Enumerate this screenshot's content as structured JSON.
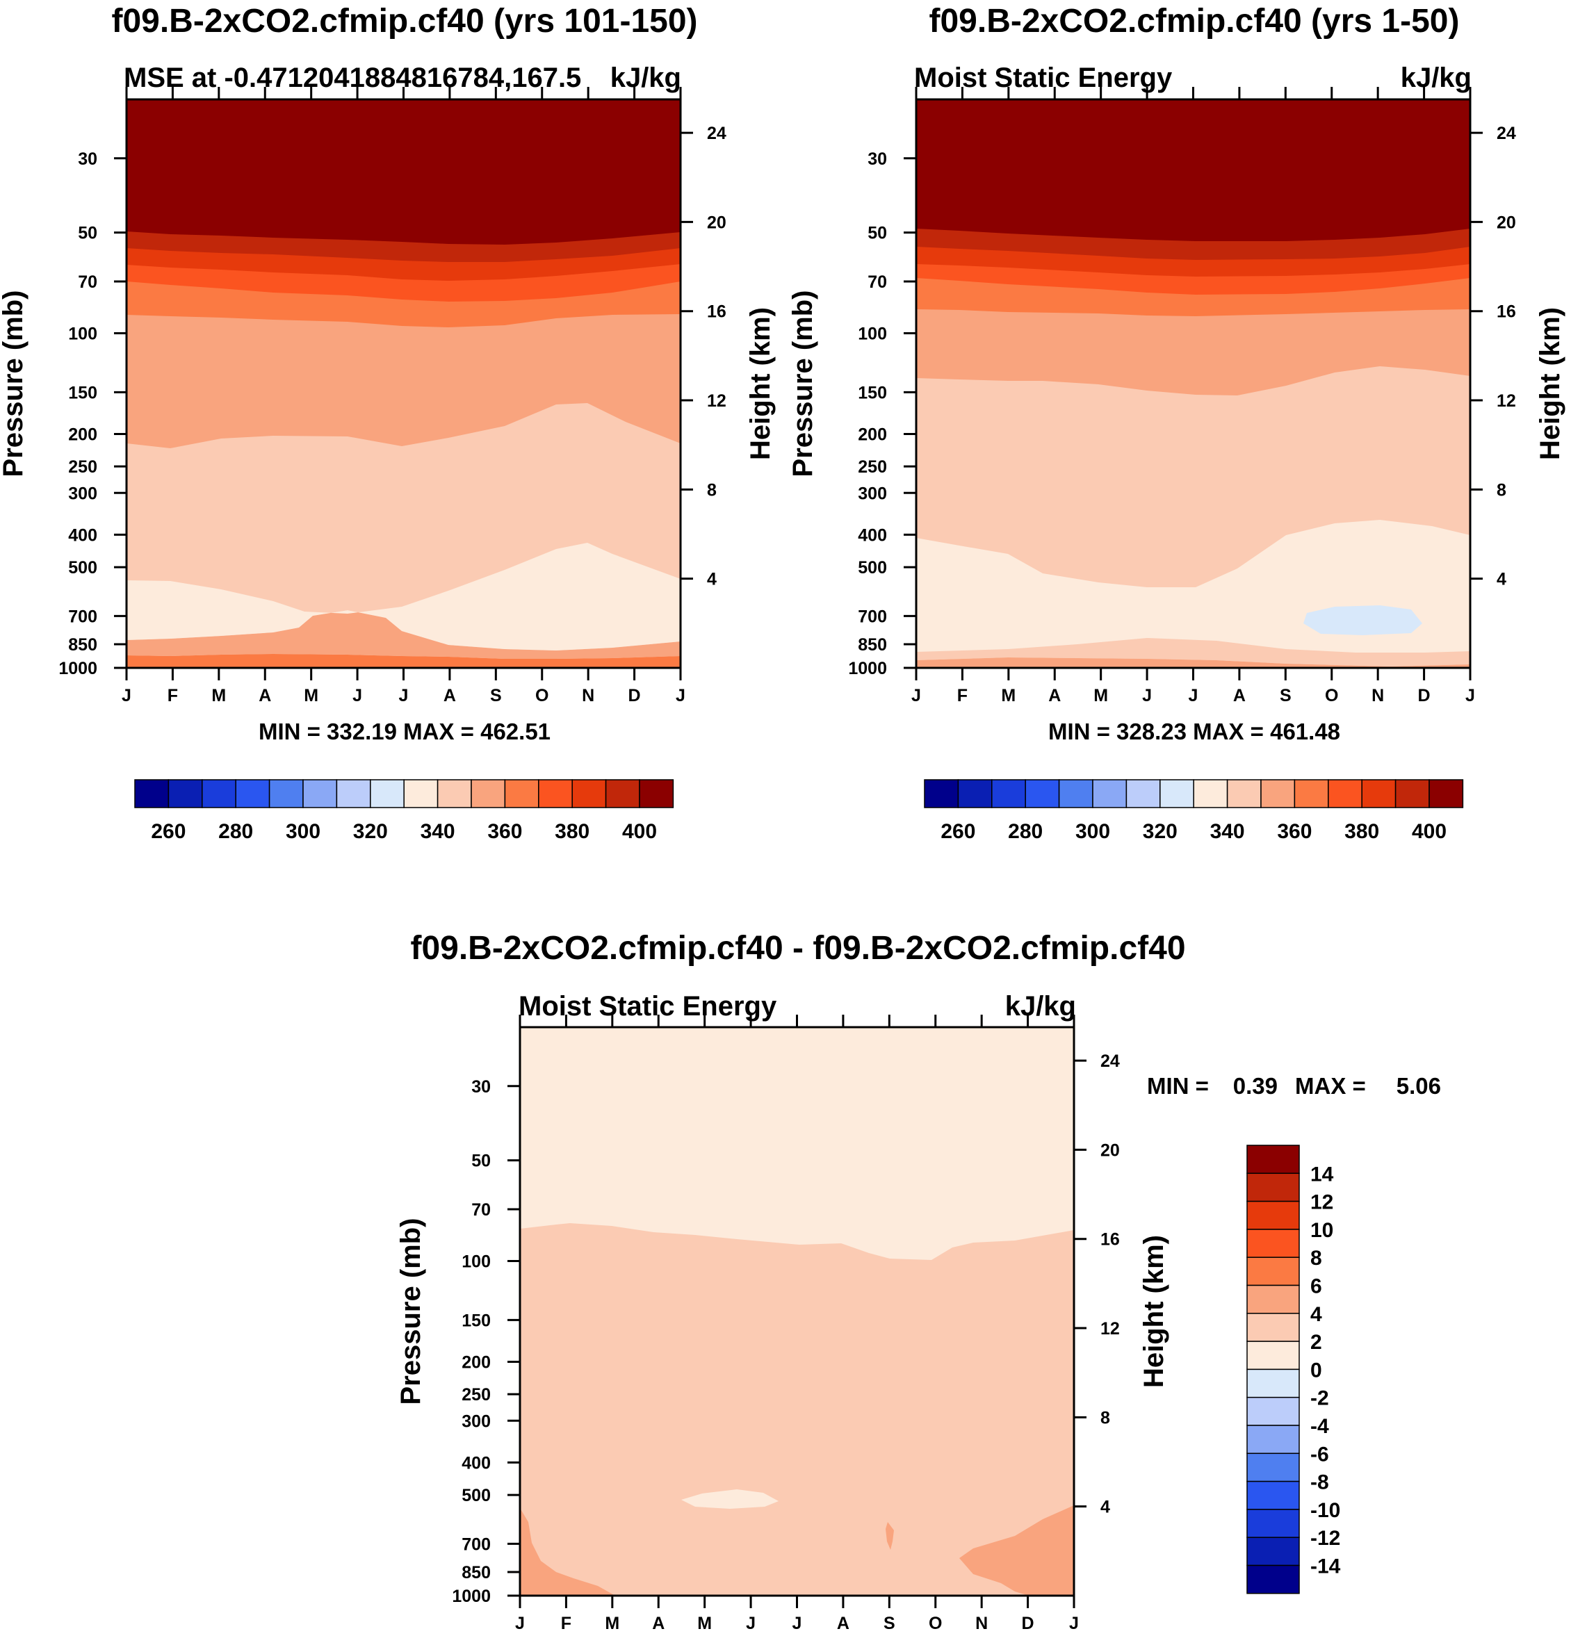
{
  "chart_data": [
    {
      "type": "contour",
      "title": "f09.B-2xCO2.cfmip.cf40 (yrs 101-150)",
      "subtitle_left": "MSE at -0.4712041884816784,167.5",
      "subtitle_right": "kJ/kg",
      "ylabel": "Pressure (mb)",
      "ylabel_right": "Height (km)",
      "x_ticks": [
        "J",
        "F",
        "M",
        "A",
        "M",
        "J",
        "J",
        "A",
        "S",
        "O",
        "N",
        "D",
        "J"
      ],
      "y_ticks": [
        "30",
        "50",
        "70",
        "100",
        "150",
        "200",
        "250",
        "300",
        "400",
        "500",
        "700",
        "850",
        "1000"
      ],
      "y_ticks_right": [
        "24",
        "20",
        "16",
        "12",
        "8",
        "4"
      ],
      "min_max_text": "MIN = 332.19 MAX = 462.51",
      "colorbar_labels": [
        "260",
        "280",
        "300",
        "320",
        "340",
        "360",
        "380",
        "400"
      ]
    },
    {
      "type": "contour",
      "title": "f09.B-2xCO2.cfmip.cf40 (yrs 1-50)",
      "subtitle_left": "Moist Static Energy",
      "subtitle_right": "kJ/kg",
      "ylabel": "Pressure (mb)",
      "ylabel_right": "Height (km)",
      "x_ticks": [
        "J",
        "F",
        "M",
        "A",
        "M",
        "J",
        "J",
        "A",
        "S",
        "O",
        "N",
        "D",
        "J"
      ],
      "y_ticks": [
        "30",
        "50",
        "70",
        "100",
        "150",
        "200",
        "250",
        "300",
        "400",
        "500",
        "700",
        "850",
        "1000"
      ],
      "y_ticks_right": [
        "24",
        "20",
        "16",
        "12",
        "8",
        "4"
      ],
      "min_max_text": "MIN = 328.23 MAX = 461.48",
      "colorbar_labels": [
        "260",
        "280",
        "300",
        "320",
        "340",
        "360",
        "380",
        "400"
      ]
    },
    {
      "type": "contour",
      "title": "f09.B-2xCO2.cfmip.cf40 - f09.B-2xCO2.cfmip.cf40",
      "subtitle_left": "Moist Static Energy",
      "subtitle_right": "kJ/kg",
      "ylabel": "Pressure (mb)",
      "ylabel_right": "Height (km)",
      "x_ticks": [
        "J",
        "F",
        "M",
        "A",
        "M",
        "J",
        "J",
        "A",
        "S",
        "O",
        "N",
        "D",
        "J"
      ],
      "y_ticks": [
        "30",
        "50",
        "70",
        "100",
        "150",
        "200",
        "250",
        "300",
        "400",
        "500",
        "700",
        "850",
        "1000"
      ],
      "y_ticks_right": [
        "24",
        "20",
        "16",
        "12",
        "8",
        "4"
      ],
      "min_label": "MIN =",
      "min_value": "0.39",
      "max_label": "MAX =",
      "max_value": "5.06",
      "colorbar_labels": [
        "14",
        "12",
        "10",
        "8",
        "6",
        "4",
        "2",
        "0",
        "-2",
        "-4",
        "-6",
        "-8",
        "-10",
        "-12",
        "-14"
      ]
    }
  ],
  "colors": {
    "palette": [
      "#00008b",
      "#0a1fb3",
      "#1a3ddb",
      "#2a56f0",
      "#4f7ff0",
      "#8aa8f5",
      "#bccdfa",
      "#d8e8fa",
      "#fdebdc",
      "#fbcbb3",
      "#f9a47e",
      "#fb7a43",
      "#fb5420",
      "#e63a0c",
      "#c1270a",
      "#8b0000"
    ]
  }
}
